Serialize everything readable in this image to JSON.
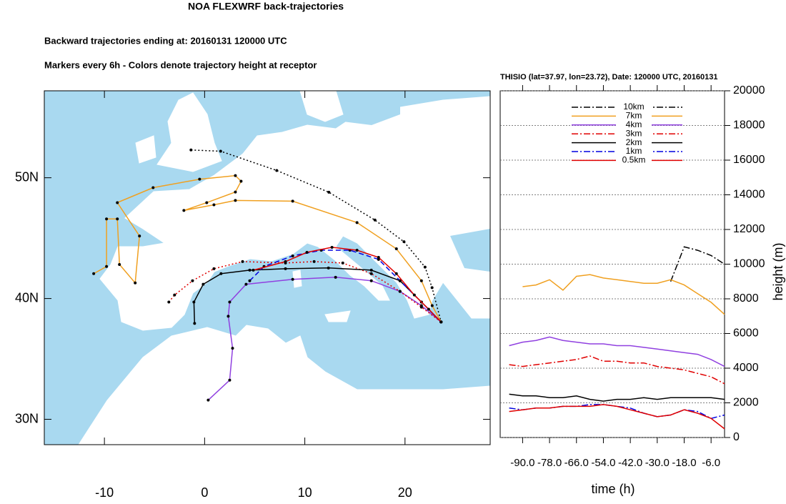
{
  "chart_data": [
    {
      "type": "map",
      "title": "NOA FLEXWRF back-trajectories",
      "subtitle": "Backward trajectories ending at: 20160131  120000 UTC",
      "note": "Markers every 6h - Colors denote trajectory height at receptor",
      "xlim": [
        -16,
        28.5
      ],
      "ylim": [
        27.9,
        57.2
      ],
      "xticks": [
        -10,
        0,
        10,
        20
      ],
      "yticks": [
        {
          "value": 30,
          "label": "30N"
        },
        {
          "value": 40,
          "label": "40N"
        },
        {
          "value": 50,
          "label": "50N"
        }
      ],
      "series": [
        {
          "color": "#000000",
          "dash": "dotted",
          "x": [
            -1.36,
            1.6,
            7.2,
            12.4,
            17.0,
            19.9,
            22.0,
            22.7,
            23.6
          ],
          "values": [
            52.3,
            52.2,
            50.6,
            48.8,
            46.5,
            44.7,
            42.6,
            40.9,
            38.06
          ]
        },
        {
          "color": "#f0a020",
          "dash": "solid",
          "x": [
            -11.07,
            -9.79,
            -9.79,
            -8.71,
            -8.5,
            -6.93,
            -6.5,
            -8.71,
            -5.14,
            -0.5,
            3.07,
            3.64,
            3.07,
            0.21,
            -2.07,
            0.93,
            3.07,
            8.79,
            15.21,
            19.14,
            21.64,
            22.71,
            23.6
          ],
          "values": [
            42.06,
            42.65,
            46.59,
            46.59,
            42.82,
            41.29,
            45.18,
            47.94,
            49.18,
            49.88,
            50.18,
            49.71,
            48.82,
            47.94,
            47.29,
            47.76,
            48.12,
            48.06,
            46.29,
            44.12,
            41.47,
            39.41,
            38.06
          ]
        },
        {
          "color": "#9040e0",
          "dash": "solid",
          "x": [
            0.36,
            2.5,
            2.79,
            2.36,
            2.5,
            4.14,
            8.79,
            13.07,
            16.64,
            19.5,
            21.64,
            23.6
          ],
          "values": [
            31.59,
            33.24,
            35.88,
            38.53,
            39.71,
            41.18,
            41.59,
            41.76,
            41.47,
            40.59,
            39.41,
            38.06
          ]
        },
        {
          "color": "#e00000",
          "dash": "dotted",
          "x": [
            -3.57,
            -3.0,
            -1.21,
            0.93,
            3.79,
            8.07,
            10.93,
            13.79,
            16.64,
            19.5,
            21.64,
            23.6
          ],
          "values": [
            39.71,
            40.29,
            41.47,
            42.47,
            43.06,
            42.94,
            43.06,
            42.94,
            42.06,
            40.59,
            39.29,
            38.06
          ]
        },
        {
          "color": "#000000",
          "dash": "solid",
          "x": [
            -1.0,
            -1.07,
            -0.14,
            1.64,
            4.5,
            8.07,
            12.36,
            16.64,
            19.5,
            21.64,
            23.6
          ],
          "values": [
            37.94,
            39.71,
            41.18,
            42.06,
            42.35,
            42.47,
            42.53,
            42.35,
            41.47,
            39.71,
            38.06
          ]
        },
        {
          "color": "#0000e0",
          "dash": "dashed",
          "x": [
            4.5,
            5.93,
            8.79,
            11.64,
            14.5,
            17.36,
            19.5,
            21.64,
            23.6
          ],
          "values": [
            41.47,
            42.65,
            43.53,
            44.0,
            44.0,
            43.24,
            41.47,
            39.71,
            38.06
          ]
        },
        {
          "color": "#e00000",
          "dash": "solid",
          "x": [
            4.86,
            8.07,
            10.21,
            12.71,
            15.21,
            17.36,
            19.14,
            20.93,
            22.36,
            23.6
          ],
          "values": [
            42.35,
            43.06,
            43.82,
            44.24,
            44.0,
            43.41,
            42.06,
            40.29,
            39.12,
            38.06
          ]
        }
      ]
    },
    {
      "type": "line",
      "title": "THISIO (lat=37.97,  lon=23.72), Date: 120000 UTC, 20160131",
      "x_label": "time (h)",
      "y_label": "height (m)",
      "xlim": [
        -100,
        0
      ],
      "ylim": [
        0,
        20000
      ],
      "xticks": [
        {
          "value": -90,
          "label": "-90.0"
        },
        {
          "value": -78,
          "label": "-78.0"
        },
        {
          "value": -66,
          "label": "-66.0"
        },
        {
          "value": -54,
          "label": "-54.0"
        },
        {
          "value": -42,
          "label": "-42.0"
        },
        {
          "value": -30,
          "label": "-30.0"
        },
        {
          "value": -18,
          "label": "-18.0"
        },
        {
          "value": -6,
          "label": "-6.0"
        }
      ],
      "yticks": [
        0,
        2000,
        4000,
        6000,
        8000,
        10000,
        12000,
        14000,
        16000,
        18000,
        20000
      ],
      "grid": true,
      "x": [
        -96,
        -90,
        -84,
        -78,
        -72,
        -66,
        -60,
        -54,
        -48,
        -42,
        -36,
        -30,
        -24,
        -18,
        -12,
        -6,
        0
      ],
      "series": [
        {
          "name": "10km",
          "color": "#000000",
          "dash": "dashdot",
          "values": [
            null,
            null,
            null,
            null,
            null,
            null,
            null,
            null,
            null,
            null,
            null,
            null,
            9000,
            11000,
            10800,
            10500,
            10000
          ]
        },
        {
          "name": "7km",
          "color": "#f0a020",
          "dash": "solid",
          "values": [
            null,
            8700,
            8800,
            9100,
            8500,
            9300,
            9400,
            9200,
            9100,
            9000,
            8900,
            8900,
            9100,
            8800,
            8300,
            7800,
            7100
          ]
        },
        {
          "name": "4km",
          "color": "#9040e0",
          "dash": "solid",
          "values": [
            5300,
            5500,
            5600,
            5800,
            5600,
            5500,
            5400,
            5400,
            5300,
            5300,
            5200,
            5100,
            5000,
            4900,
            4800,
            4500,
            4100
          ]
        },
        {
          "name": "3km",
          "color": "#e00000",
          "dash": "dashdot",
          "values": [
            4200,
            4100,
            4200,
            4300,
            4400,
            4500,
            4700,
            4400,
            4400,
            4300,
            4300,
            4100,
            4000,
            3900,
            3700,
            3500,
            3100
          ]
        },
        {
          "name": "2km",
          "color": "#000000",
          "dash": "solid",
          "values": [
            2500,
            2400,
            2400,
            2300,
            2300,
            2400,
            2200,
            2100,
            2200,
            2200,
            2300,
            2200,
            2300,
            2300,
            2300,
            2300,
            2200
          ]
        },
        {
          "name": "1km",
          "color": "#0000e0",
          "dash": "dashdot",
          "values": [
            1700,
            1600,
            1700,
            1700,
            1800,
            1800,
            1900,
            1900,
            1800,
            1700,
            1400,
            1200,
            1300,
            1600,
            1500,
            1100,
            1300
          ]
        },
        {
          "name": "0.5km",
          "color": "#e00000",
          "dash": "solid",
          "values": [
            1500,
            1600,
            1700,
            1700,
            1800,
            1800,
            1800,
            1900,
            1800,
            1600,
            1400,
            1200,
            1300,
            1600,
            1400,
            1100,
            500
          ]
        }
      ]
    }
  ]
}
